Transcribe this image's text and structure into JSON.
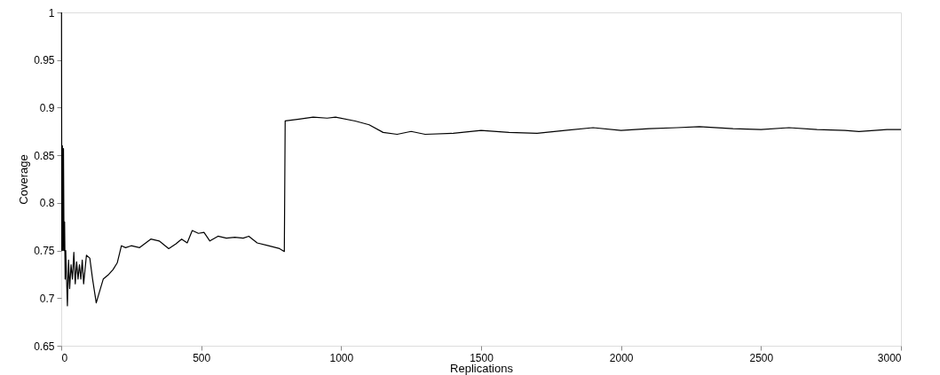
{
  "chart_data": {
    "type": "line",
    "xlabel": "Replications",
    "ylabel": "Coverage",
    "x": [
      1,
      2,
      4,
      6,
      8,
      10,
      12,
      14,
      16,
      22,
      26,
      30,
      35,
      40,
      45,
      50,
      55,
      60,
      65,
      70,
      75,
      80,
      90,
      102,
      112,
      125,
      135,
      150,
      170,
      185,
      200,
      215,
      230,
      250,
      280,
      320,
      350,
      384,
      410,
      430,
      450,
      468,
      490,
      510,
      531,
      560,
      590,
      620,
      650,
      670,
      700,
      740,
      780,
      797,
      800,
      850,
      900,
      950,
      980,
      1050,
      1100,
      1150,
      1200,
      1250,
      1300,
      1400,
      1500,
      1600,
      1700,
      1800,
      1900,
      2000,
      2100,
      2200,
      2280,
      2400,
      2500,
      2600,
      2700,
      2800,
      2850,
      2950,
      3000
    ],
    "series": [
      {
        "color": "#000000",
        "values": [
          1.0,
          0.75,
          0.86,
          0.75,
          0.857,
          0.75,
          0.78,
          0.72,
          0.75,
          0.692,
          0.74,
          0.71,
          0.735,
          0.72,
          0.748,
          0.715,
          0.738,
          0.72,
          0.735,
          0.72,
          0.74,
          0.715,
          0.745,
          0.742,
          0.72,
          0.695,
          0.705,
          0.72,
          0.725,
          0.73,
          0.737,
          0.755,
          0.753,
          0.755,
          0.753,
          0.762,
          0.76,
          0.752,
          0.757,
          0.762,
          0.758,
          0.771,
          0.768,
          0.769,
          0.76,
          0.765,
          0.763,
          0.764,
          0.763,
          0.765,
          0.758,
          0.755,
          0.752,
          0.749,
          0.886,
          0.888,
          0.89,
          0.889,
          0.89,
          0.886,
          0.882,
          0.874,
          0.872,
          0.875,
          0.872,
          0.873,
          0.876,
          0.874,
          0.873,
          0.876,
          0.879,
          0.876,
          0.878,
          0.879,
          0.88,
          0.878,
          0.877,
          0.879,
          0.877,
          0.876,
          0.875,
          0.877,
          0.877
        ]
      }
    ],
    "xlim": [
      0,
      3000
    ],
    "ylim": [
      0.65,
      1
    ],
    "xticks": [
      0,
      500,
      1000,
      1500,
      2000,
      2500,
      3000
    ],
    "yticks": [
      0.65,
      0.7,
      0.75,
      0.8,
      0.85,
      0.9,
      0.95,
      1
    ],
    "grid": false,
    "legend": false,
    "marker": "none",
    "line_style": "solid"
  }
}
